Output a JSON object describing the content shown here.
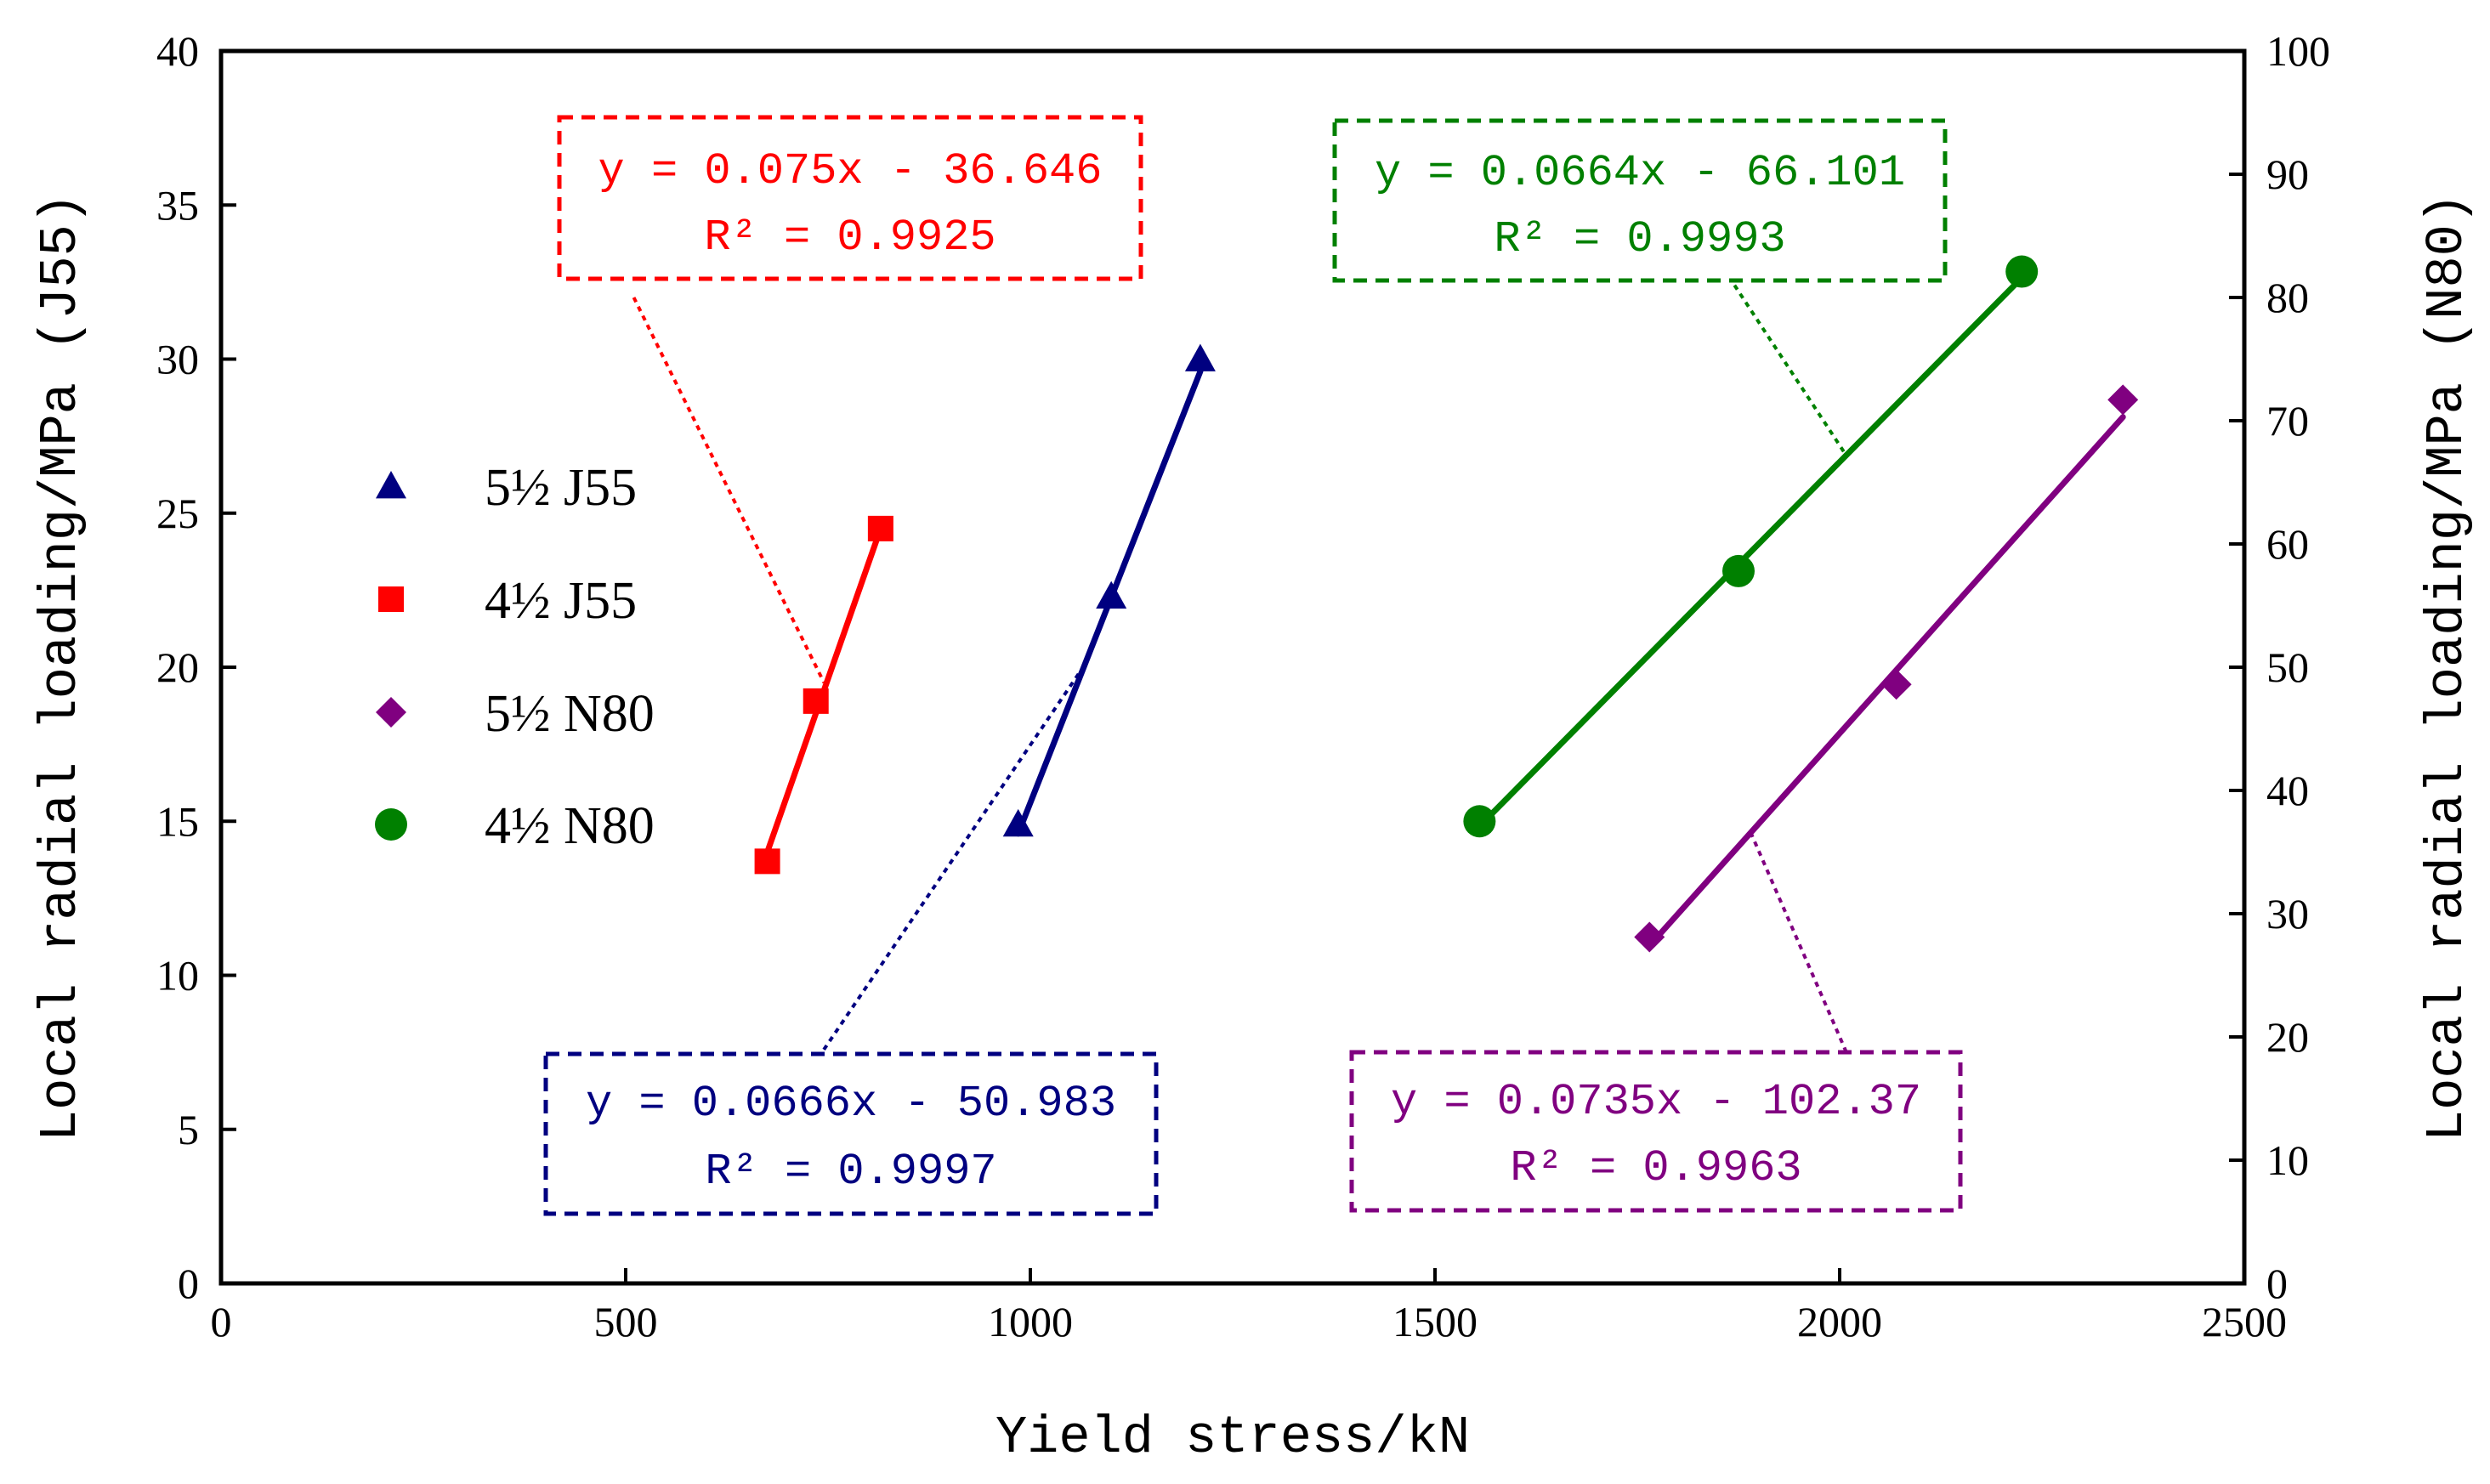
{
  "chart_data": {
    "type": "scatter",
    "xlabel": "Yield stress/kN",
    "ylabel_left": "Local radial loading/MPa (J55)",
    "ylabel_right": "Local radial loading/MPa (N80)",
    "xlim": [
      0,
      2500
    ],
    "ylim_left": [
      0,
      40
    ],
    "ylim_right": [
      0,
      100
    ],
    "x_ticks": [
      "0",
      "500",
      "1000",
      "1500",
      "2000",
      "2500"
    ],
    "y_ticks_left": [
      "0",
      "5",
      "10",
      "15",
      "20",
      "25",
      "30",
      "35",
      "40"
    ],
    "y_ticks_right": [
      "0",
      "10",
      "20",
      "30",
      "40",
      "50",
      "60",
      "70",
      "80",
      "90",
      "100"
    ],
    "grid": false,
    "legend_position": "left-center",
    "series": [
      {
        "name": "5½ J55",
        "axis": "left",
        "marker": "triangle",
        "color": "#000080",
        "x": [
          985,
          1100,
          1210
        ],
        "y": [
          14.9,
          22.3,
          30.0
        ],
        "fit": {
          "x": [
            985,
            1210
          ],
          "y": [
            14.6,
            29.6
          ]
        },
        "equation": "y = 0.0666x - 50.983",
        "r2": "R² = 0.9997",
        "leader": {
          "x": [
            660,
            1060
          ],
          "y": [
            4.3,
            19.8
          ]
        }
      },
      {
        "name": "4½ J55",
        "axis": "left",
        "marker": "square",
        "color": "#ff0000",
        "x": [
          675,
          735,
          815
        ],
        "y": [
          13.7,
          18.9,
          24.5
        ],
        "fit": {
          "x": [
            675,
            815
          ],
          "y": [
            14.0,
            24.5
          ]
        },
        "equation": "y = 0.075x - 36.646",
        "r2": "R² = 0.9925",
        "leader": {
          "x": [
            510,
            745
          ],
          "y": [
            32.0,
            19.5
          ]
        }
      },
      {
        "name": "5½ N80",
        "axis": "right",
        "marker": "diamond",
        "color": "#800080",
        "x": [
          1765,
          2070,
          2350
        ],
        "y": [
          28.1,
          48.6,
          71.7
        ],
        "fit": {
          "x": [
            1765,
            2350
          ],
          "y": [
            27.4,
            70.3
          ]
        },
        "equation": "y = 0.0735x - 102.37",
        "r2": "R² = 0.9963",
        "leader": {
          "x": [
            1890,
            2010
          ],
          "y": [
            36.6,
            18.5
          ]
        }
      },
      {
        "name": "4½ N80",
        "axis": "right",
        "marker": "circle",
        "color": "#008000",
        "x": [
          1555,
          1875,
          2225
        ],
        "y": [
          37.5,
          57.8,
          82.1
        ],
        "fit": {
          "x": [
            1555,
            2225
          ],
          "y": [
            37.1,
            81.6
          ]
        },
        "equation": "y = 0.0664x - 66.101",
        "r2": "R² = 0.9993",
        "leader": {
          "x": [
            2005,
            1855
          ],
          "y": [
            67.5,
            82.5
          ]
        }
      }
    ]
  }
}
